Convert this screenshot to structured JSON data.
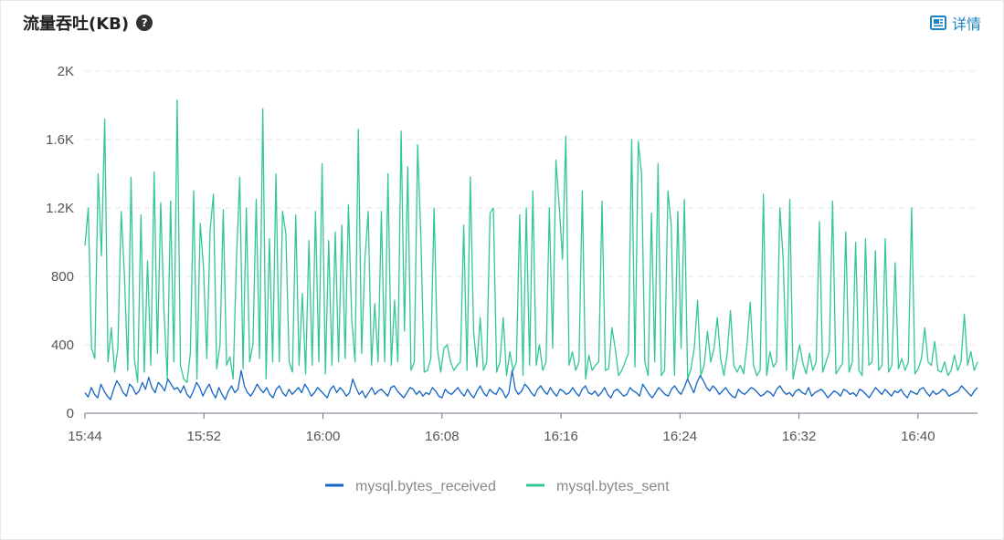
{
  "header": {
    "title": "流量吞吐(KB)",
    "help_icon": "question-circle-icon",
    "details_label": "详情",
    "details_icon": "report-icon"
  },
  "colors": {
    "received": "#1767c4",
    "sent": "#34c795",
    "details": "#1c84c6",
    "grid": "#e3e6ea"
  },
  "chart_data": {
    "type": "line",
    "y_ticks": [
      "0",
      "400",
      "800",
      "1.2K",
      "1.6K",
      "2K"
    ],
    "y_tick_values": [
      0,
      400,
      800,
      1200,
      1600,
      2000
    ],
    "ylim": [
      0,
      2000
    ],
    "x_ticks": [
      "15:44",
      "15:52",
      "16:00",
      "16:08",
      "16:16",
      "16:24",
      "16:32",
      "16:40"
    ],
    "x_tick_minutes": [
      0,
      8,
      16,
      24,
      32,
      40,
      48,
      56
    ],
    "x_range_minutes": [
      0,
      60
    ],
    "start_time": "15:44",
    "grid": "horizontal dashed",
    "legend_position": "bottom",
    "series": [
      {
        "name": "mysql.bytes_received",
        "color": "#1767c4",
        "values": [
          120,
          95,
          150,
          110,
          90,
          170,
          130,
          100,
          80,
          140,
          190,
          160,
          120,
          100,
          170,
          150,
          110,
          130,
          180,
          140,
          210,
          150,
          120,
          180,
          160,
          130,
          200,
          170,
          140,
          150,
          120,
          160,
          110,
          90,
          130,
          180,
          150,
          100,
          140,
          170,
          120,
          90,
          150,
          110,
          80,
          130,
          160,
          120,
          140,
          250,
          160,
          120,
          100,
          130,
          170,
          140,
          120,
          150,
          110,
          90,
          140,
          160,
          120,
          100,
          140,
          110,
          130,
          150,
          120,
          170,
          140,
          100,
          120,
          150,
          130,
          110,
          90,
          140,
          160,
          120,
          150,
          130,
          100,
          120,
          200,
          150,
          110,
          130,
          90,
          120,
          150,
          110,
          130,
          140,
          120,
          100,
          150,
          160,
          130,
          110,
          90,
          120,
          150,
          140,
          110,
          130,
          100,
          120,
          110,
          150,
          130,
          100,
          90,
          140,
          120,
          110,
          130,
          150,
          120,
          100,
          140,
          110,
          90,
          130,
          160,
          120,
          100,
          140,
          120,
          110,
          150,
          130,
          90,
          120,
          250,
          140,
          110,
          130,
          170,
          150,
          120,
          100,
          140,
          160,
          130,
          110,
          150,
          120,
          100,
          140,
          130,
          110,
          120,
          150,
          120,
          100,
          140,
          160,
          120,
          110,
          130,
          100,
          120,
          150,
          110,
          90,
          130,
          140,
          120,
          100,
          110,
          150,
          130,
          120,
          100,
          170,
          140,
          110,
          90,
          120,
          150,
          130,
          110,
          100,
          140,
          160,
          130,
          110,
          150,
          200,
          160,
          120,
          180,
          220,
          190,
          150,
          130,
          160,
          140,
          110,
          130,
          150,
          120,
          100,
          90,
          140,
          120,
          110,
          130,
          150,
          140,
          120,
          100,
          110,
          130,
          120,
          100,
          140,
          160,
          130,
          110,
          120,
          100,
          130,
          140,
          120,
          110,
          150,
          100,
          120,
          130,
          140,
          120,
          90,
          110,
          130,
          120,
          100,
          140,
          130,
          110,
          120,
          100,
          140,
          130,
          110,
          90,
          120,
          150,
          130,
          110,
          140,
          120,
          100,
          130,
          120,
          140,
          110,
          90,
          130,
          120,
          110,
          140,
          150,
          120,
          100,
          130,
          110,
          120,
          140,
          130,
          100,
          110,
          120,
          130,
          160,
          140,
          120,
          100,
          130,
          150
        ]
      },
      {
        "name": "mysql.bytes_sent",
        "color": "#34c795",
        "values": [
          980,
          1200,
          380,
          320,
          1400,
          920,
          1720,
          300,
          500,
          240,
          380,
          1180,
          800,
          250,
          1380,
          320,
          180,
          1160,
          240,
          890,
          280,
          1410,
          350,
          1230,
          600,
          200,
          1240,
          300,
          1830,
          280,
          200,
          180,
          350,
          1300,
          200,
          1110,
          850,
          320,
          1070,
          1280,
          260,
          400,
          1190,
          280,
          330,
          200,
          900,
          1380,
          260,
          1200,
          300,
          400,
          1250,
          320,
          1780,
          200,
          1020,
          300,
          1400,
          300,
          1180,
          1050,
          300,
          240,
          1160,
          280,
          700,
          230,
          1010,
          280,
          1180,
          300,
          1460,
          230,
          1010,
          280,
          1060,
          300,
          1100,
          320,
          1220,
          550,
          300,
          1660,
          350,
          900,
          1180,
          280,
          640,
          300,
          1180,
          300,
          1400,
          280,
          660,
          300,
          1650,
          480,
          1440,
          250,
          300,
          1570,
          1020,
          240,
          250,
          320,
          1200,
          380,
          240,
          380,
          400,
          300,
          250,
          280,
          300,
          1100,
          250,
          1380,
          480,
          270,
          560,
          250,
          300,
          1170,
          1200,
          240,
          300,
          560,
          220,
          360,
          250,
          300,
          1160,
          220,
          1200,
          280,
          1300,
          280,
          400,
          250,
          300,
          1200,
          380,
          1480,
          1210,
          900,
          1620,
          280,
          360,
          250,
          300,
          1300,
          200,
          340,
          250,
          280,
          300,
          1240,
          250,
          260,
          500,
          380,
          220,
          250,
          300,
          350,
          1600,
          270,
          1590,
          1400,
          300,
          220,
          1170,
          300,
          1460,
          220,
          250,
          1300,
          1100,
          220,
          1180,
          380,
          1250,
          200,
          260,
          380,
          660,
          220,
          280,
          480,
          300,
          380,
          560,
          320,
          220,
          350,
          600,
          280,
          240,
          280,
          230,
          400,
          650,
          280,
          220,
          250,
          1280,
          220,
          360,
          270,
          300,
          1200,
          900,
          250,
          1250,
          200,
          300,
          400,
          290,
          230,
          350,
          250,
          300,
          1120,
          240,
          300,
          360,
          1240,
          230,
          260,
          290,
          1060,
          240,
          300,
          1000,
          250,
          220,
          1020,
          280,
          300,
          950,
          250,
          280,
          1020,
          240,
          280,
          880,
          260,
          320,
          250,
          300,
          1200,
          230,
          260,
          320,
          500,
          300,
          280,
          420,
          250,
          240,
          300,
          220,
          250,
          340,
          250,
          300,
          580,
          280,
          360,
          250,
          300
        ]
      }
    ]
  },
  "legend": {
    "items": [
      {
        "label": "mysql.bytes_received",
        "color": "#1767c4"
      },
      {
        "label": "mysql.bytes_sent",
        "color": "#34c795"
      }
    ]
  }
}
